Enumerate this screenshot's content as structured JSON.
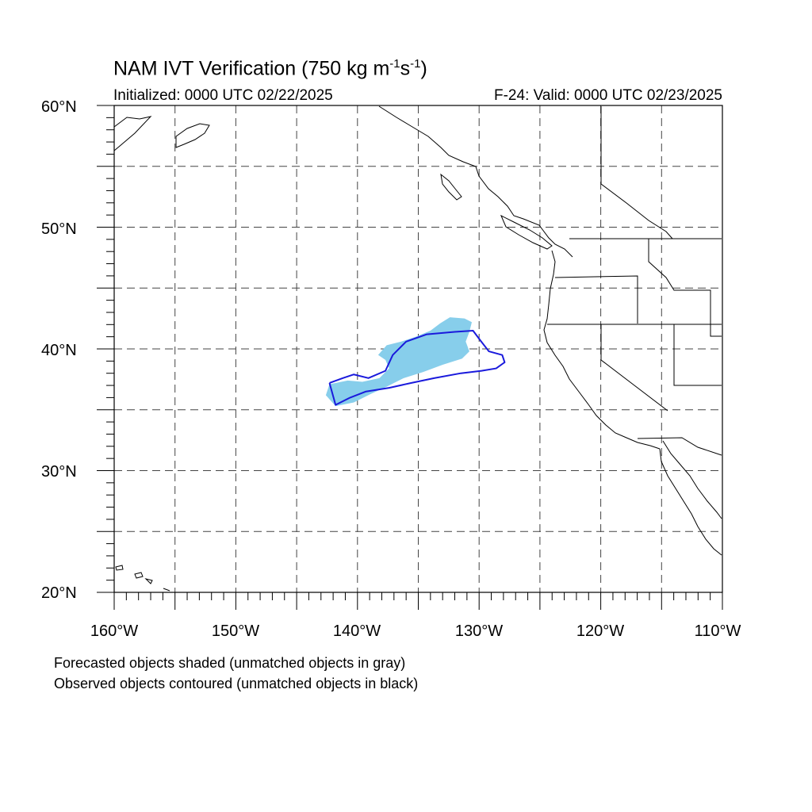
{
  "title": {
    "main": "NAM IVT Verification (750 kg m",
    "sup1": "-1",
    "mid": "s",
    "sup2": "-1",
    "end": ")"
  },
  "subtitle_left": "Initialized: 0000 UTC 02/22/2025",
  "subtitle_right": "F-24: Valid: 0000 UTC 02/23/2025",
  "lat_labels": [
    "60°N",
    "50°N",
    "40°N",
    "30°N",
    "20°N"
  ],
  "lon_labels": [
    "160°W",
    "150°W",
    "140°W",
    "130°W",
    "120°W",
    "110°W"
  ],
  "notes": [
    "Forecasted objects shaded (unmatched objects in gray)",
    "Observed objects contoured (unmatched objects in black)"
  ],
  "map": {
    "lon_range": [
      -160,
      -110
    ],
    "lat_range": [
      20,
      60
    ],
    "grid_spacing_deg": 5,
    "forecast_fill_color": "#87ceeb",
    "observed_contour_color": "#1a1adc",
    "coastline_color": "#000000",
    "forecast_object": [
      [
        -141.8,
        35.3
      ],
      [
        -142.6,
        36.2
      ],
      [
        -142.3,
        37.1
      ],
      [
        -140.8,
        37.4
      ],
      [
        -139.6,
        37.3
      ],
      [
        -138.2,
        37.6
      ],
      [
        -137.4,
        38.4
      ],
      [
        -137.7,
        39.1
      ],
      [
        -138.3,
        39.5
      ],
      [
        -137.6,
        40.3
      ],
      [
        -136.4,
        40.6
      ],
      [
        -135.2,
        41.0
      ],
      [
        -134.0,
        41.5
      ],
      [
        -133.2,
        42.1
      ],
      [
        -132.4,
        42.6
      ],
      [
        -131.2,
        42.5
      ],
      [
        -130.6,
        42.2
      ],
      [
        -130.8,
        41.4
      ],
      [
        -131.1,
        40.6
      ],
      [
        -130.8,
        39.8
      ],
      [
        -131.4,
        39.2
      ],
      [
        -133.0,
        38.7
      ],
      [
        -134.6,
        38.1
      ],
      [
        -136.2,
        37.6
      ],
      [
        -137.6,
        36.9
      ],
      [
        -138.9,
        36.3
      ],
      [
        -140.3,
        35.6
      ]
    ],
    "observed_object": [
      [
        -142.3,
        37.2
      ],
      [
        -141.8,
        35.4
      ],
      [
        -140.6,
        36.0
      ],
      [
        -139.3,
        36.5
      ],
      [
        -137.4,
        36.8
      ],
      [
        -135.6,
        37.2
      ],
      [
        -133.7,
        37.6
      ],
      [
        -131.5,
        38.0
      ],
      [
        -129.8,
        38.2
      ],
      [
        -128.6,
        38.4
      ],
      [
        -127.9,
        38.9
      ],
      [
        -128.1,
        39.5
      ],
      [
        -129.2,
        39.8
      ],
      [
        -129.9,
        40.7
      ],
      [
        -130.5,
        41.5
      ],
      [
        -132.0,
        41.4
      ],
      [
        -134.3,
        41.2
      ],
      [
        -136.0,
        40.6
      ],
      [
        -137.1,
        39.5
      ],
      [
        -137.7,
        38.2
      ],
      [
        -139.1,
        37.6
      ],
      [
        -140.3,
        37.9
      ],
      [
        -141.2,
        37.6
      ]
    ]
  }
}
